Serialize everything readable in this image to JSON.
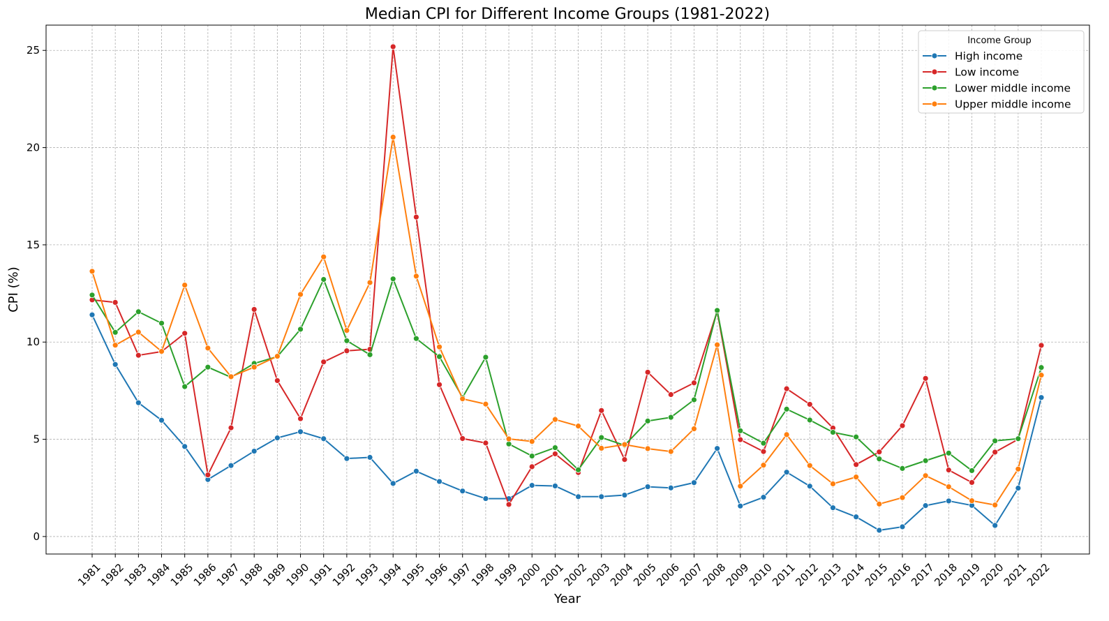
{
  "chart_data": {
    "type": "line",
    "title": "Median CPI for Different Income Groups (1981-2022)",
    "xlabel": "Year",
    "ylabel": "CPI (%)",
    "ylim": [
      -0.9,
      26.3
    ],
    "yticks": [
      0,
      5,
      10,
      15,
      20,
      25
    ],
    "grid": true,
    "legend": {
      "title": "Income Group",
      "placement": "top-right"
    },
    "x": [
      "1981",
      "1982",
      "1983",
      "1984",
      "1985",
      "1986",
      "1987",
      "1988",
      "1989",
      "1990",
      "1991",
      "1992",
      "1993",
      "1994",
      "1995",
      "1996",
      "1997",
      "1998",
      "1999",
      "2000",
      "2001",
      "2002",
      "2003",
      "2004",
      "2005",
      "2006",
      "2007",
      "2008",
      "2009",
      "2010",
      "2011",
      "2012",
      "2013",
      "2014",
      "2015",
      "2016",
      "2017",
      "2018",
      "2019",
      "2020",
      "2021",
      "2022"
    ],
    "series": [
      {
        "name": "High income",
        "color": "#1f77b4",
        "values": [
          11.4,
          8.85,
          6.88,
          5.98,
          4.63,
          2.93,
          3.65,
          4.39,
          5.07,
          5.39,
          5.03,
          4.01,
          4.07,
          2.73,
          3.36,
          2.83,
          2.34,
          1.95,
          1.95,
          2.63,
          2.6,
          2.05,
          2.05,
          2.13,
          2.56,
          2.5,
          2.77,
          4.53,
          1.57,
          2.02,
          3.31,
          2.59,
          1.48,
          1.01,
          0.32,
          0.5,
          1.59,
          1.83,
          1.6,
          0.57,
          2.49,
          7.15
        ]
      },
      {
        "name": "Low income",
        "color": "#d62728",
        "values": [
          12.17,
          12.04,
          9.32,
          9.51,
          10.45,
          3.17,
          5.59,
          11.68,
          8.02,
          6.06,
          8.98,
          9.55,
          9.63,
          25.19,
          16.43,
          7.81,
          5.04,
          4.81,
          1.65,
          3.59,
          4.25,
          3.29,
          6.48,
          3.96,
          8.45,
          7.3,
          7.9,
          11.58,
          4.98,
          4.37,
          7.6,
          6.8,
          5.58,
          3.7,
          4.35,
          5.7,
          8.13,
          3.42,
          2.78,
          4.34,
          5.0,
          9.83
        ]
      },
      {
        "name": "Lower middle income",
        "color": "#2ca02c",
        "values": [
          12.42,
          10.5,
          11.56,
          10.97,
          7.71,
          8.71,
          8.19,
          8.9,
          9.25,
          10.66,
          13.22,
          10.07,
          9.35,
          13.25,
          10.18,
          9.25,
          7.15,
          9.22,
          4.76,
          4.14,
          4.57,
          3.43,
          5.09,
          4.69,
          5.94,
          6.13,
          7.03,
          11.63,
          5.44,
          4.8,
          6.55,
          5.99,
          5.36,
          5.12,
          3.99,
          3.5,
          3.9,
          4.29,
          3.39,
          4.92,
          5.03,
          8.69
        ]
      },
      {
        "name": "Upper middle income",
        "color": "#ff7f0e",
        "values": [
          13.64,
          9.84,
          10.51,
          9.52,
          12.93,
          9.69,
          8.22,
          8.71,
          9.27,
          12.45,
          14.38,
          10.6,
          13.06,
          20.54,
          13.39,
          9.75,
          7.08,
          6.81,
          5.02,
          4.89,
          6.02,
          5.68,
          4.54,
          4.73,
          4.52,
          4.37,
          5.54,
          9.86,
          2.59,
          3.67,
          5.24,
          3.65,
          2.71,
          3.06,
          1.67,
          2.0,
          3.13,
          2.56,
          1.84,
          1.62,
          3.47,
          8.3
        ]
      }
    ]
  }
}
